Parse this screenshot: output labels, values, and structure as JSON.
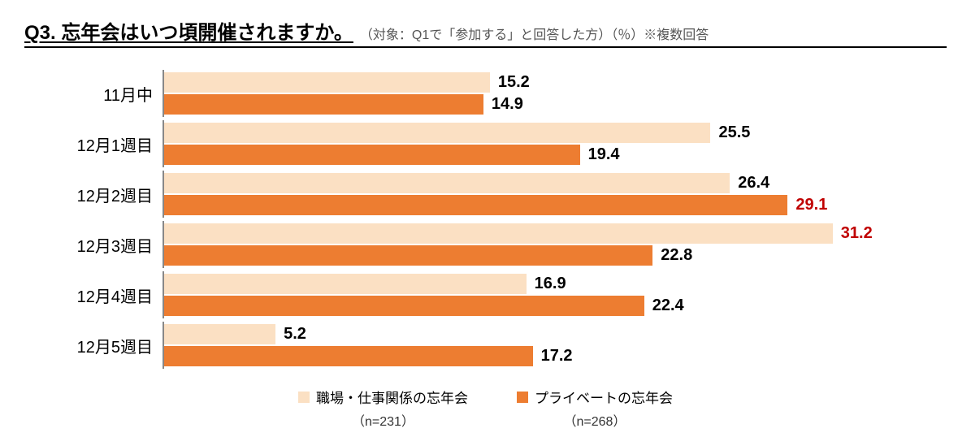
{
  "title": {
    "main": "Q3. 忘年会はいつ頃開催されますか。",
    "sub": "（対象：Q1で「参加する」と回答した方）（％）※複数回答"
  },
  "chart": {
    "type": "bar",
    "orientation": "horizontal",
    "xmax": 35,
    "categories": [
      "11月中",
      "12月1週目",
      "12月2週目",
      "12月3週目",
      "12月4週目",
      "12月5週目"
    ],
    "series": [
      {
        "key": "work",
        "label": "職場・仕事関係の忘年会",
        "n": "（n=231）",
        "color": "#fbe0c3",
        "values": [
          15.2,
          25.5,
          26.4,
          31.2,
          16.9,
          5.2
        ],
        "highlight_index": 3
      },
      {
        "key": "private",
        "label": "プライベートの忘年会",
        "n": "（n=268）",
        "color": "#ed7d31",
        "values": [
          14.9,
          19.4,
          29.1,
          22.8,
          22.4,
          17.2
        ],
        "highlight_index": 2
      }
    ],
    "label_color": "#000000",
    "highlight_color": "#c00000",
    "label_fontsize": 20,
    "axis_color": "#888888",
    "background": "#ffffff"
  }
}
